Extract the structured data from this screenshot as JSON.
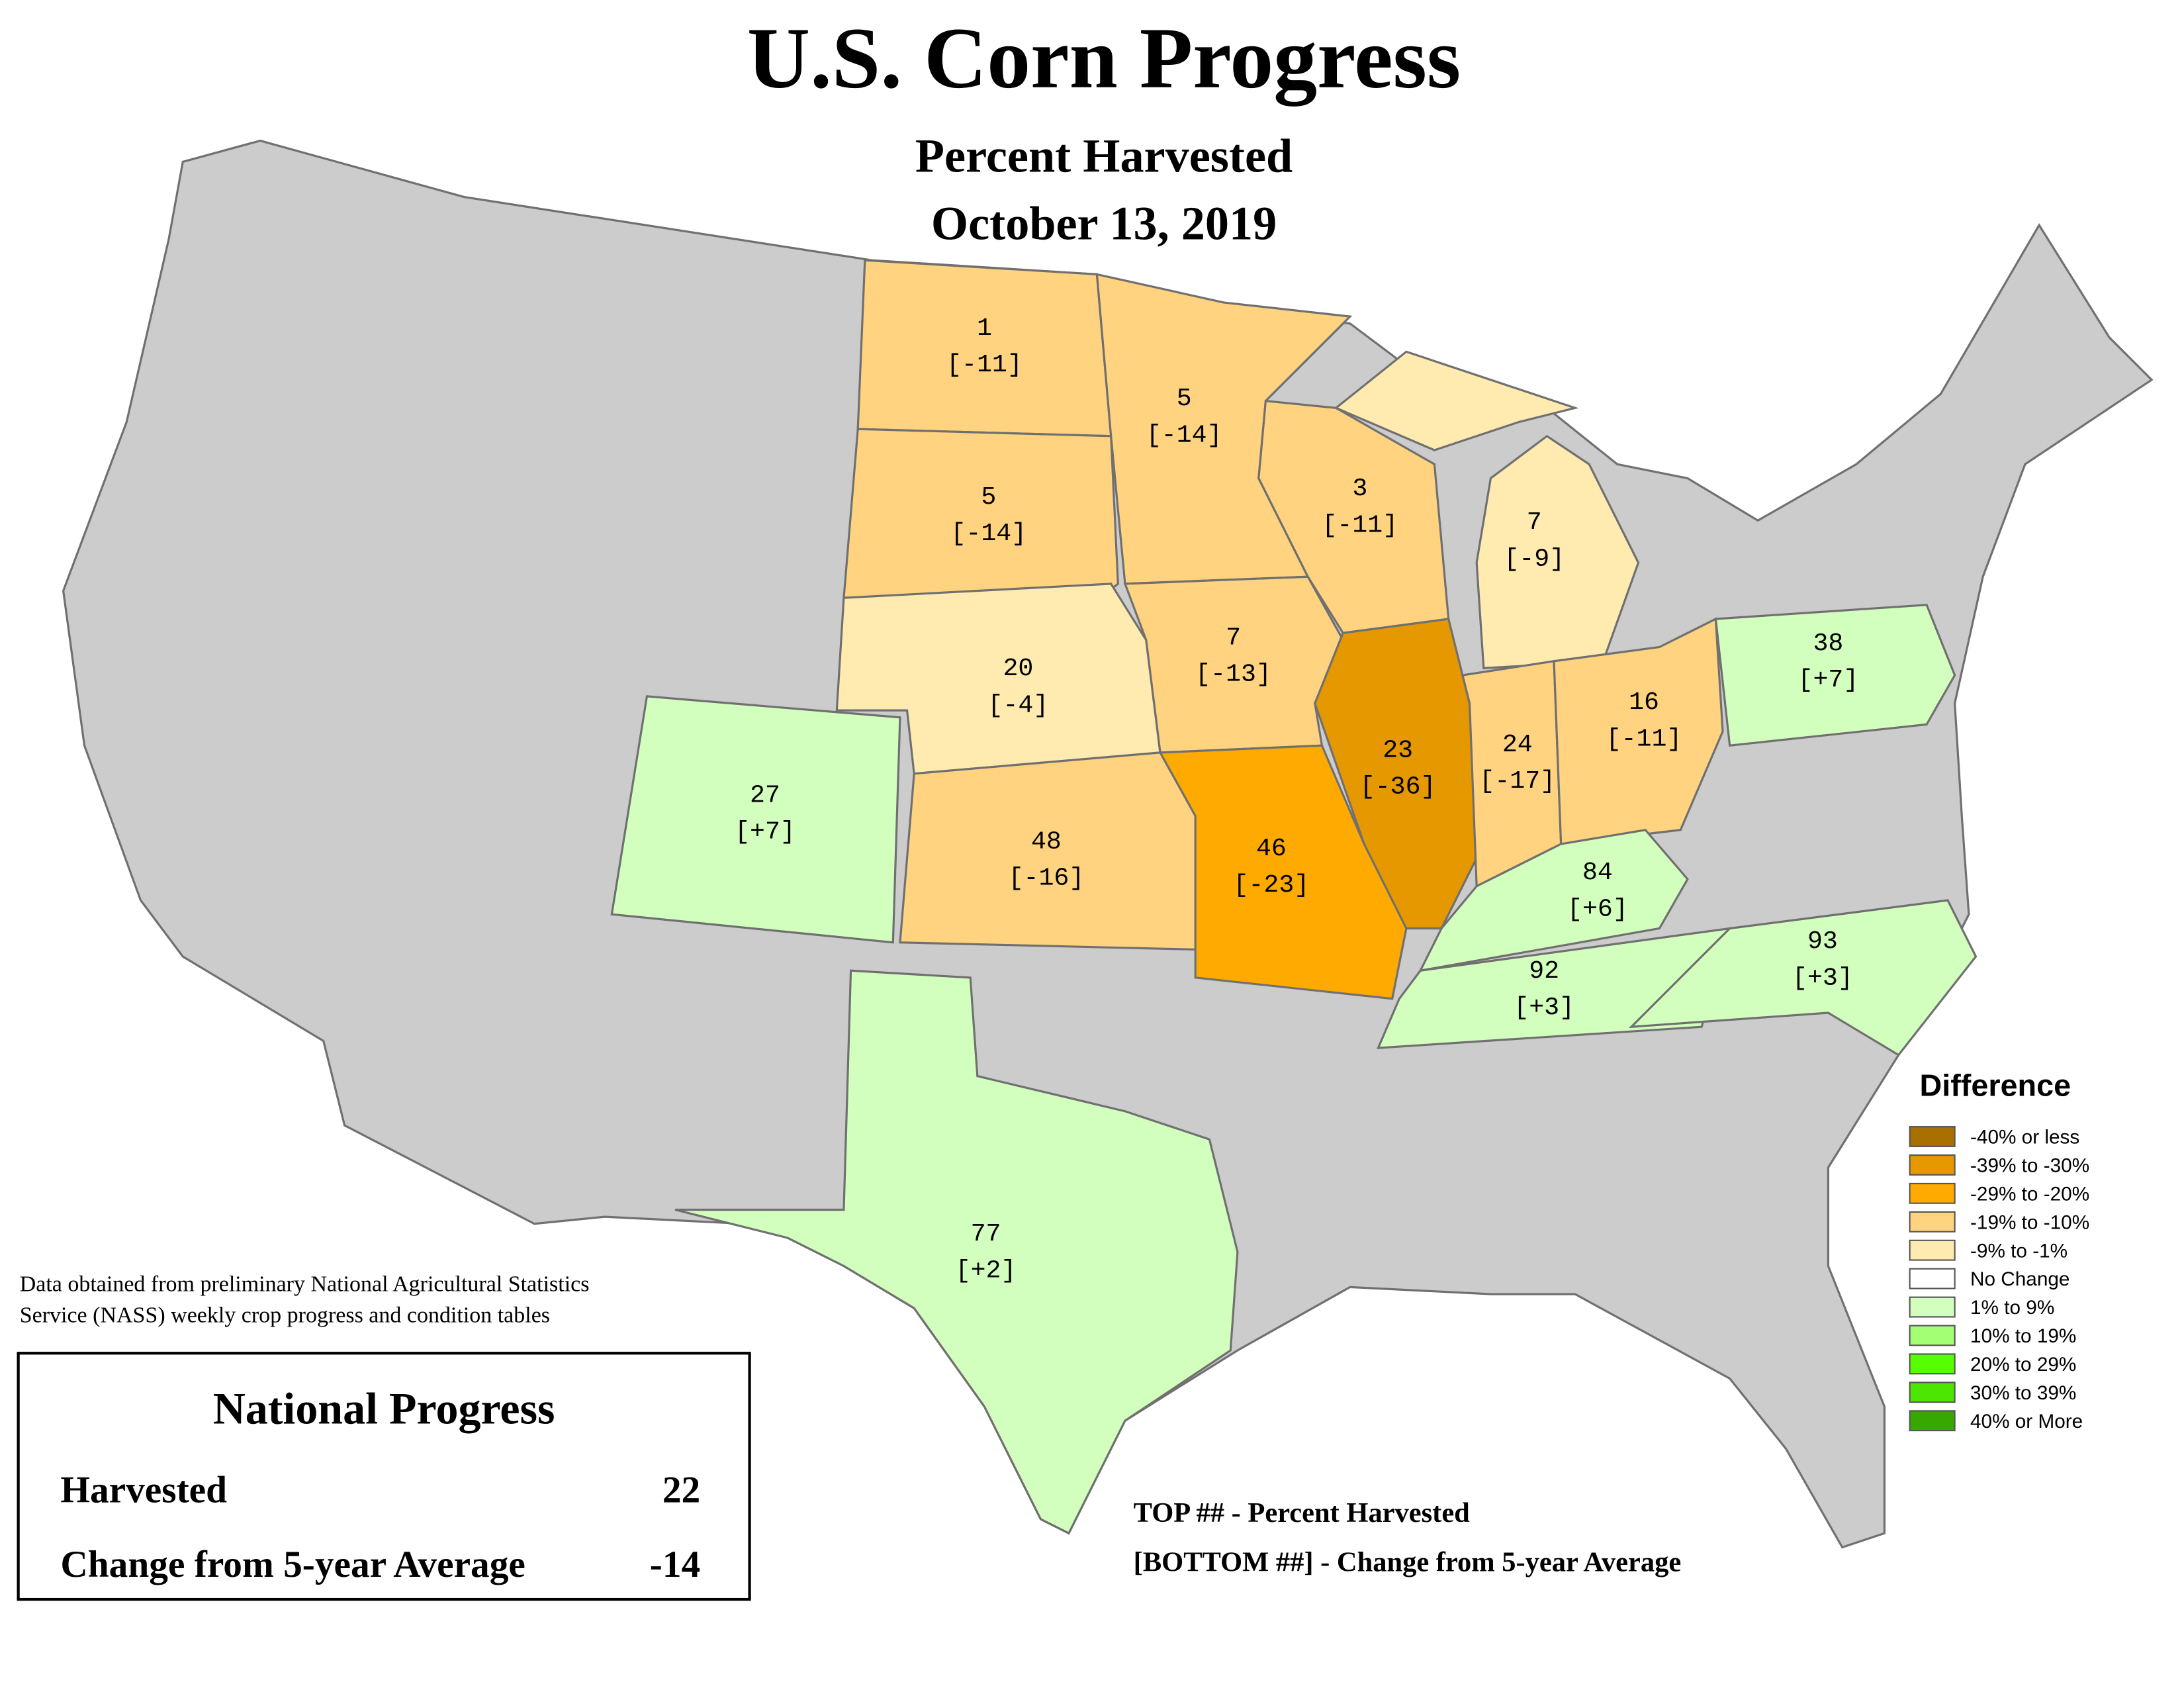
{
  "header": {
    "title": "U.S. Corn Progress",
    "subtitle": "Percent Harvested",
    "date": "October 13, 2019"
  },
  "states": [
    {
      "harvested": 1,
      "change": "[-11]",
      "bin": 3
    },
    {
      "harvested": 5,
      "change": "[-14]",
      "bin": 3
    },
    {
      "harvested": 5,
      "change": "[-14]",
      "bin": 3
    },
    {
      "harvested": 3,
      "change": "[-11]",
      "bin": 3
    },
    {
      "harvested": 7,
      "change": "[-9]",
      "bin": 4
    },
    {
      "harvested": 20,
      "change": "[-4]",
      "bin": 4
    },
    {
      "harvested": 7,
      "change": "[-13]",
      "bin": 3
    },
    {
      "harvested": 23,
      "change": "[-36]",
      "bin": 1
    },
    {
      "harvested": 24,
      "change": "[-17]",
      "bin": 3
    },
    {
      "harvested": 16,
      "change": "[-11]",
      "bin": 3
    },
    {
      "harvested": 38,
      "change": "[+7]",
      "bin": 6
    },
    {
      "harvested": 27,
      "change": "[+7]",
      "bin": 6
    },
    {
      "harvested": 48,
      "change": "[-16]",
      "bin": 3
    },
    {
      "harvested": 46,
      "change": "[-23]",
      "bin": 2
    },
    {
      "harvested": 84,
      "change": "[+6]",
      "bin": 6
    },
    {
      "harvested": 92,
      "change": "[+3]",
      "bin": 6
    },
    {
      "harvested": 93,
      "change": "[+3]",
      "bin": 6
    },
    {
      "harvested": 77,
      "change": "[+2]",
      "bin": 6
    }
  ],
  "legend": {
    "title": "Difference",
    "items": [
      {
        "label": "-40% or less",
        "color": "#a87000"
      },
      {
        "label": "-39% to -30%",
        "color": "#e69800"
      },
      {
        "label": "-29% to -20%",
        "color": "#ffaa00"
      },
      {
        "label": "-19% to -10%",
        "color": "#ffd37f"
      },
      {
        "label": "-9% to -1%",
        "color": "#ffebaf"
      },
      {
        "label": "No Change",
        "color": "#ffffff"
      },
      {
        "label": "1% to 9%",
        "color": "#d3ffbe"
      },
      {
        "label": "10% to 19%",
        "color": "#a3ff73"
      },
      {
        "label": "20% to 29%",
        "color": "#55ff00"
      },
      {
        "label": "30% to 39%",
        "color": "#4ce600"
      },
      {
        "label": "40% or More",
        "color": "#38a800"
      }
    ]
  },
  "source_note": [
    "Data obtained from preliminary National Agricultural Statistics",
    "Service (NASS) weekly crop progress and condition tables"
  ],
  "national": {
    "title": "National Progress",
    "harvested_label": "Harvested",
    "harvested": 22,
    "change_label": "Change from 5-year Average",
    "change": -14
  },
  "key": [
    "TOP ## - Percent Harvested",
    "[BOTTOM ##] - Change from 5-year Average"
  ]
}
